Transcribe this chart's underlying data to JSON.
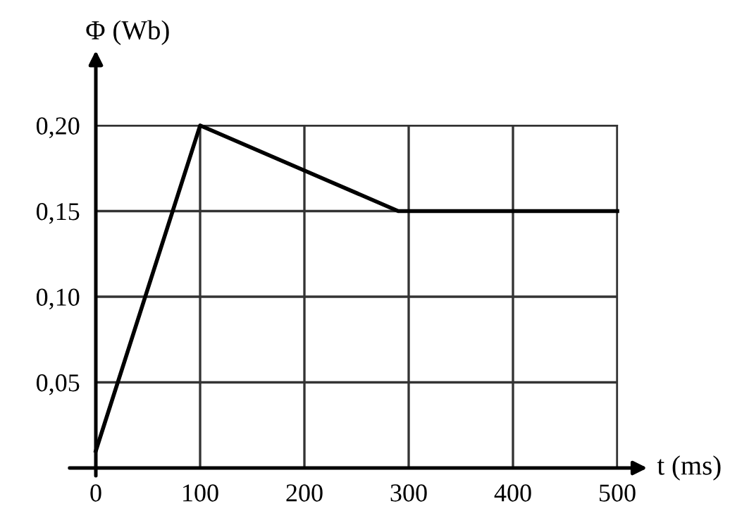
{
  "chart_data": {
    "type": "line",
    "xlabel": "t (ms)",
    "ylabel": "Φ (Wb)",
    "x": [
      0,
      100,
      290,
      500
    ],
    "series": [
      {
        "color": "#000000",
        "values": [
          0.01,
          0.2,
          0.15,
          0.15
        ]
      }
    ],
    "xlim": [
      0,
      500
    ],
    "ylim": [
      0,
      0.2
    ],
    "xticks": [
      0,
      100,
      200,
      300,
      400,
      500
    ],
    "yticks": [
      {
        "value": 0.05,
        "label": "0,05"
      },
      {
        "value": 0.1,
        "label": "0,10"
      },
      {
        "value": 0.15,
        "label": "0,15"
      },
      {
        "value": 0.2,
        "label": "0,20"
      }
    ],
    "grid": true,
    "marker": "none",
    "line_style": "solid",
    "legend": false
  }
}
